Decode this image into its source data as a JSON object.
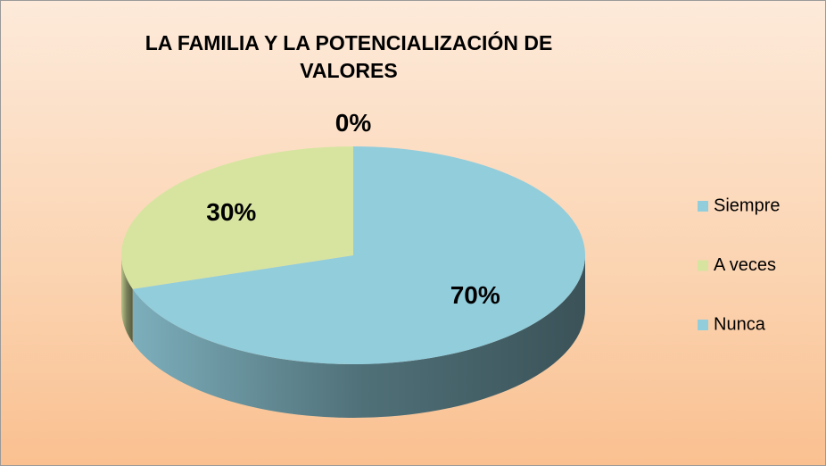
{
  "chart_data": {
    "type": "pie3d",
    "title": "LA FAMILIA Y LA POTENCIALIZACIÓN DE VALORES",
    "categories": [
      "Siempre",
      "A veces",
      "Nunca"
    ],
    "values": [
      70,
      30,
      0
    ],
    "value_labels": [
      "70%",
      "30%",
      "0%"
    ],
    "colors": [
      "#92cddc",
      "#d7e4a0",
      "#92cddc"
    ],
    "legend": "right"
  }
}
